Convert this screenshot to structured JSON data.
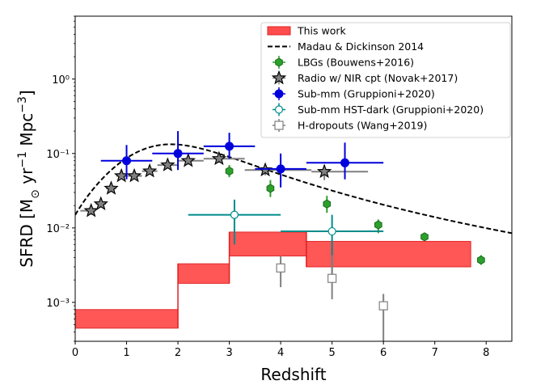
{
  "chart_data": {
    "type": "scatter",
    "xlabel": "Redshift",
    "ylabel_parts": [
      "SFRD [M",
      "⊙",
      " yr",
      "−1",
      " Mpc",
      "−3",
      "]"
    ],
    "xlim": [
      0,
      8.5
    ],
    "ylim": [
      0.0003,
      7
    ],
    "yscale": "log",
    "grid": false,
    "legend_position": "top-right",
    "x_ticks": [
      0,
      1,
      2,
      3,
      4,
      5,
      6,
      7,
      8
    ],
    "x_tick_labels": [
      "0",
      "1",
      "2",
      "3",
      "4",
      "5",
      "6",
      "7",
      "8"
    ],
    "y_ticks": [
      0.001,
      0.01,
      0.1,
      1
    ],
    "y_tick_labels": [
      "10⁻³",
      "10⁻²",
      "10⁻¹",
      "10⁰"
    ],
    "legend": [
      {
        "label": "This work",
        "kind": "patch",
        "color": "#ff4d4d",
        "edge": "#e02020"
      },
      {
        "label": "Madau & Dickinson 2014",
        "kind": "dashed-line",
        "color": "#000000"
      },
      {
        "label": "LBGs (Bouwens+2016)",
        "kind": "hexagon",
        "color": "#2ca02c",
        "edge": "#1a6b1a"
      },
      {
        "label": "Radio w/ NIR cpt (Novak+2017)",
        "kind": "star",
        "color": "#808080",
        "edge": "#000000"
      },
      {
        "label": "Sub-mm (Gruppioni+2020)",
        "kind": "diamond",
        "color": "#0000dd",
        "edge": "#0000dd"
      },
      {
        "label": "Sub-mm HST-dark (Gruppioni+2020)",
        "kind": "open-diamond",
        "color": "#008b8b",
        "edge": "#008b8b"
      },
      {
        "label": "H-dropouts (Wang+2019)",
        "kind": "open-square",
        "color": "#808080",
        "edge": "#808080"
      }
    ],
    "this_work_bands": [
      {
        "z_min": 0.0,
        "z_max": 2.0,
        "sfrd_low": 0.00045,
        "sfrd_high": 0.0008
      },
      {
        "z_min": 2.0,
        "z_max": 3.0,
        "sfrd_low": 0.0018,
        "sfrd_high": 0.0033
      },
      {
        "z_min": 3.0,
        "z_max": 4.5,
        "sfrd_low": 0.0042,
        "sfrd_high": 0.0088
      },
      {
        "z_min": 4.5,
        "z_max": 7.7,
        "sfrd_low": 0.003,
        "sfrd_high": 0.0066
      }
    ],
    "madau_dickinson_2014": {
      "formula": "0.015*(1+z)^2.7/(1+((1+z)/2.9)^5.6)",
      "z_range": [
        0,
        8.5
      ]
    },
    "series": [
      {
        "name": "LBGs (Bouwens+2016)",
        "marker": "hexagon",
        "color": "#2ca02c",
        "edge": "#1a6b1a",
        "points": [
          {
            "x": 3.0,
            "y": 0.058,
            "y_low": 0.048,
            "y_high": 0.07
          },
          {
            "x": 3.8,
            "y": 0.034,
            "y_low": 0.026,
            "y_high": 0.044
          },
          {
            "x": 4.9,
            "y": 0.021,
            "y_low": 0.016,
            "y_high": 0.027
          },
          {
            "x": 5.9,
            "y": 0.011,
            "y_low": 0.0085,
            "y_high": 0.013
          },
          {
            "x": 6.8,
            "y": 0.0076,
            "y_low": 0.0067,
            "y_high": 0.0086
          },
          {
            "x": 7.9,
            "y": 0.0037,
            "y_low": 0.0032,
            "y_high": 0.0043
          }
        ]
      },
      {
        "name": "Radio w/ NIR cpt (Novak+2017)",
        "marker": "star",
        "color": "#808080",
        "edge": "#000000",
        "points": [
          {
            "x": 0.31,
            "y": 0.017,
            "x_low": 0.1,
            "x_high": 0.4,
            "y_low": 0.015,
            "y_high": 0.019
          },
          {
            "x": 0.5,
            "y": 0.021,
            "x_low": 0.4,
            "x_high": 0.6,
            "y_low": 0.019,
            "y_high": 0.023
          },
          {
            "x": 0.7,
            "y": 0.034,
            "x_low": 0.6,
            "x_high": 0.8,
            "y_low": 0.031,
            "y_high": 0.037
          },
          {
            "x": 0.9,
            "y": 0.05,
            "x_low": 0.8,
            "x_high": 1.0,
            "y_low": 0.046,
            "y_high": 0.054
          },
          {
            "x": 1.15,
            "y": 0.05,
            "x_low": 1.0,
            "x_high": 1.3,
            "y_low": 0.046,
            "y_high": 0.055
          },
          {
            "x": 1.45,
            "y": 0.058,
            "x_low": 1.3,
            "x_high": 1.6,
            "y_low": 0.053,
            "y_high": 0.064
          },
          {
            "x": 1.8,
            "y": 0.07,
            "x_low": 1.6,
            "x_high": 2.0,
            "y_low": 0.063,
            "y_high": 0.077
          },
          {
            "x": 2.2,
            "y": 0.08,
            "x_low": 2.0,
            "x_high": 2.5,
            "y_low": 0.071,
            "y_high": 0.088
          },
          {
            "x": 2.8,
            "y": 0.085,
            "x_low": 2.5,
            "x_high": 3.3,
            "y_low": 0.075,
            "y_high": 0.095
          },
          {
            "x": 3.7,
            "y": 0.06,
            "x_low": 3.3,
            "x_high": 4.6,
            "y_low": 0.051,
            "y_high": 0.07
          },
          {
            "x": 4.85,
            "y": 0.057,
            "x_low": 4.6,
            "x_high": 5.7,
            "y_low": 0.044,
            "y_high": 0.07
          }
        ]
      },
      {
        "name": "Sub-mm (Gruppioni+2020)",
        "marker": "diamond",
        "color": "#0000dd",
        "edge": "#0000dd",
        "points": [
          {
            "x": 1.0,
            "y": 0.08,
            "x_low": 0.5,
            "x_high": 1.5,
            "y_low": 0.045,
            "y_high": 0.13
          },
          {
            "x": 2.0,
            "y": 0.1,
            "x_low": 1.5,
            "x_high": 2.5,
            "y_low": 0.06,
            "y_high": 0.2
          },
          {
            "x": 3.0,
            "y": 0.125,
            "x_low": 2.5,
            "x_high": 3.5,
            "y_low": 0.085,
            "y_high": 0.19
          },
          {
            "x": 4.0,
            "y": 0.062,
            "x_low": 3.5,
            "x_high": 4.5,
            "y_low": 0.035,
            "y_high": 0.1
          },
          {
            "x": 5.25,
            "y": 0.075,
            "x_low": 4.5,
            "x_high": 6.0,
            "y_low": 0.045,
            "y_high": 0.14
          }
        ]
      },
      {
        "name": "Sub-mm HST-dark (Gruppioni+2020)",
        "marker": "open-diamond",
        "color": "#008b8b",
        "edge": "#008b8b",
        "points": [
          {
            "x": 3.1,
            "y": 0.015,
            "x_low": 2.2,
            "x_high": 4.0,
            "y_low": 0.006,
            "y_high": 0.024
          },
          {
            "x": 5.0,
            "y": 0.009,
            "x_low": 4.0,
            "x_high": 6.0,
            "y_low": 0.0022,
            "y_high": 0.015
          }
        ]
      },
      {
        "name": "H-dropouts (Wang+2019)",
        "marker": "open-square",
        "color": "#808080",
        "edge": "#808080",
        "points": [
          {
            "x": 4.0,
            "y": 0.0029,
            "y_low": 0.0016,
            "y_high": 0.0042
          },
          {
            "x": 5.0,
            "y": 0.0021,
            "y_low": 0.0011,
            "y_high": 0.0043
          },
          {
            "x": 6.0,
            "y": 0.0009,
            "y_low": 0.0003,
            "y_high": 0.0013
          }
        ]
      }
    ]
  }
}
